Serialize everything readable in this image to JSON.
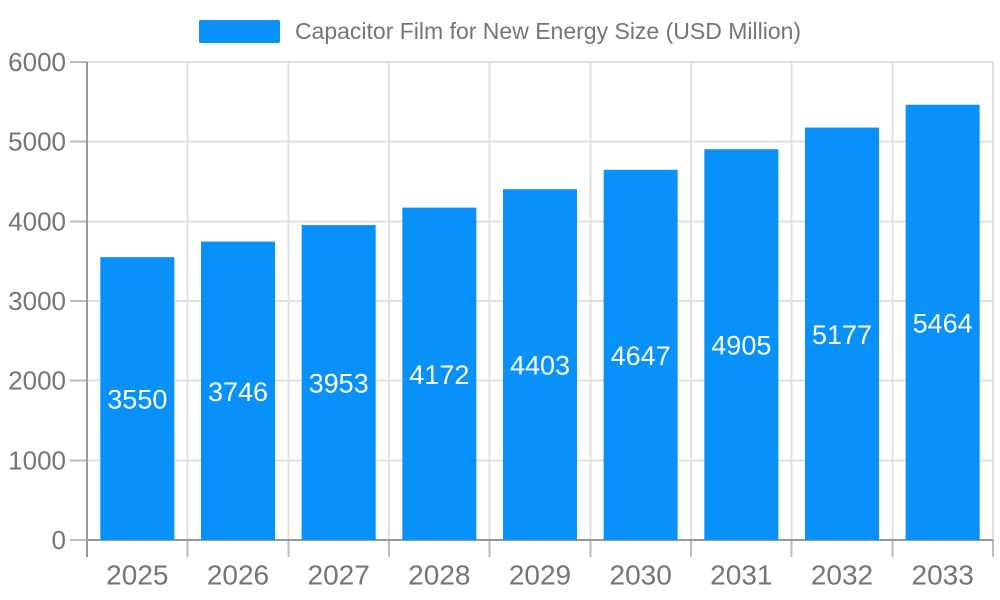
{
  "legend": {
    "label": "Capacitor Film for New Energy Size (USD Million)"
  },
  "colors": {
    "bar": "#0890FB",
    "bar_label": "#FFFFFF",
    "axis_label": "#757575",
    "axis_line": "#999999",
    "tick": "#BBBBBB",
    "grid": "#E0E0E0",
    "legend_text": "#757575",
    "background": "#FFFFFF"
  },
  "chart_data": {
    "type": "bar",
    "title": "Capacitor Film for New Energy Size (USD Million)",
    "categories": [
      "2025",
      "2026",
      "2027",
      "2028",
      "2029",
      "2030",
      "2031",
      "2032",
      "2033"
    ],
    "series": [
      {
        "name": "Capacitor Film for New Energy Size (USD Million)",
        "values": [
          3550,
          3746,
          3953,
          4172,
          4403,
          4647,
          4905,
          5177,
          5464
        ]
      }
    ],
    "xlabel": "",
    "ylabel": "",
    "ylim": [
      0,
      6000
    ],
    "yticks": [
      0,
      1000,
      2000,
      3000,
      4000,
      5000,
      6000
    ],
    "grid": true,
    "legend_position": "top-center",
    "bar_label_position": "inside-middle"
  }
}
